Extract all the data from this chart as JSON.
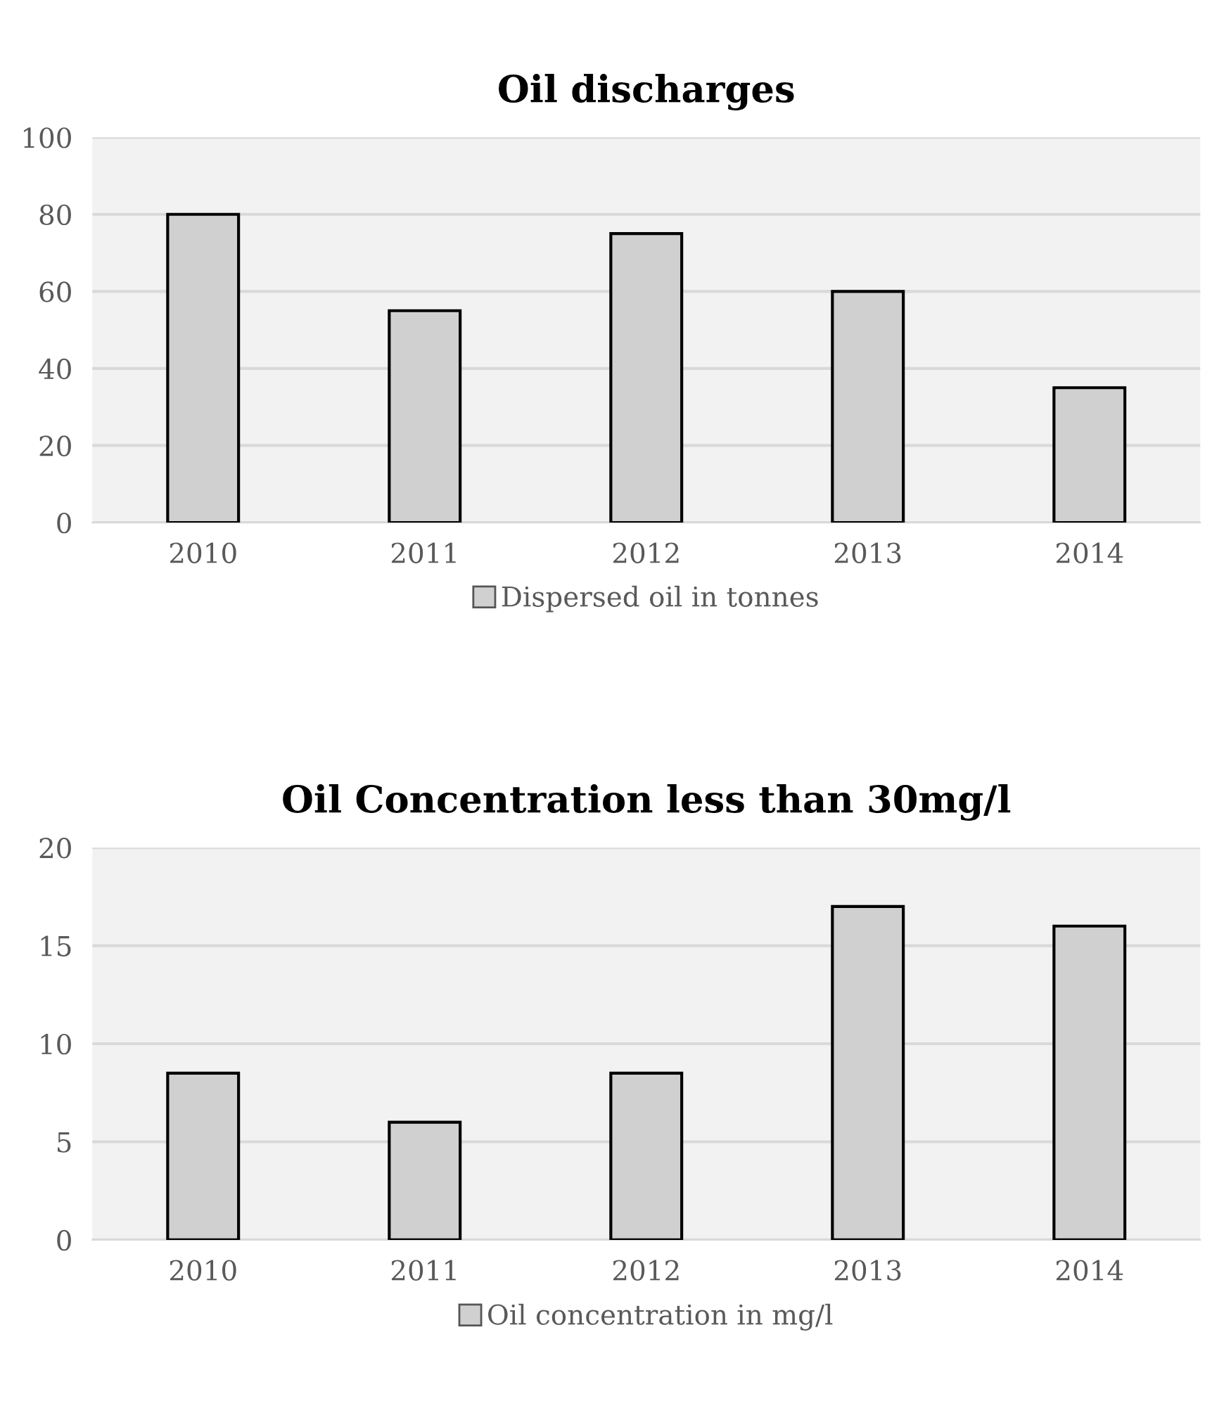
{
  "chart_data": [
    {
      "type": "bar",
      "title": "Oil discharges",
      "categories": [
        "2010",
        "2011",
        "2012",
        "2013",
        "2014"
      ],
      "series": [
        {
          "name": "Dispersed oil in tonnes",
          "color": "#d0d0d0",
          "values": [
            80,
            55,
            75,
            60,
            35
          ]
        }
      ],
      "ylim": [
        0,
        100
      ],
      "yticks": [
        0,
        20,
        40,
        60,
        80,
        100
      ],
      "grid": "y",
      "legend": "bottom"
    },
    {
      "type": "bar",
      "title": "Oil Concentration less than 30mg/l",
      "categories": [
        "2010",
        "2011",
        "2012",
        "2013",
        "2014"
      ],
      "series": [
        {
          "name": "Oil concentration in mg/l",
          "color": "#d0d0d0",
          "values": [
            8.5,
            6,
            8.5,
            17,
            16
          ]
        }
      ],
      "ylim": [
        0,
        20
      ],
      "yticks": [
        0,
        5,
        10,
        15,
        20
      ],
      "grid": "y",
      "legend": "bottom"
    }
  ]
}
